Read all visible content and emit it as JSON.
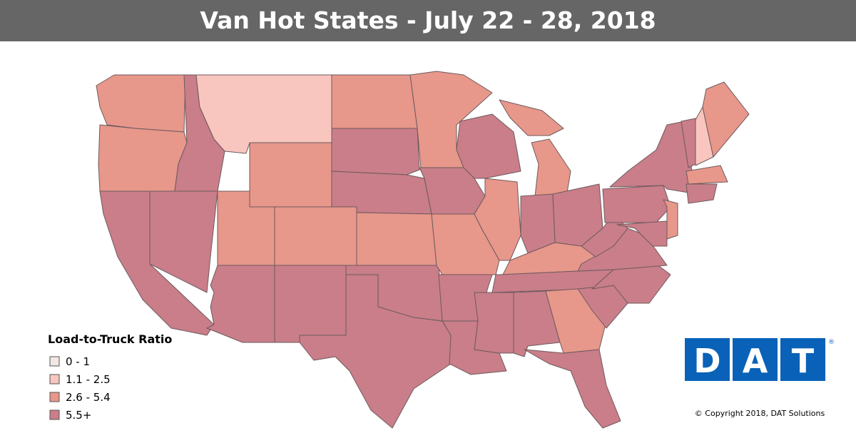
{
  "header": {
    "title": "Van Hot States - July 22 - 28, 2018"
  },
  "legend": {
    "title": "Load-to-Truck Ratio",
    "items": [
      {
        "label": "0 - 1",
        "color": "#f3e7e5"
      },
      {
        "label": "1.1 - 2.5",
        "color": "#f8c6be"
      },
      {
        "label": "2.6 - 5.4",
        "color": "#e8978b"
      },
      {
        "label": "5.5+",
        "color": "#c97e89"
      }
    ]
  },
  "logo": {
    "letters": [
      "D",
      "A",
      "T"
    ],
    "mark": "®",
    "color": "#0a62b8"
  },
  "footer": {
    "copyright": "© Copyright 2018, DAT Solutions"
  }
}
